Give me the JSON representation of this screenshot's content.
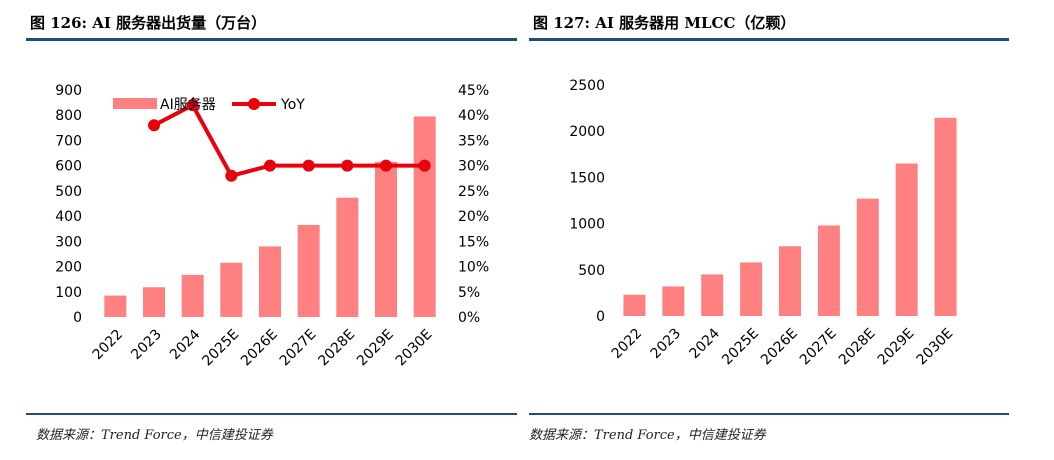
{
  "left": {
    "figure_title": "图 126: AI 服务器出货量（万台）",
    "source": "数据来源：Trend Force，中信建投证券"
  },
  "right": {
    "figure_title": "图 127: AI 服务器用 MLCC（亿颗）",
    "source": "数据来源：Trend Force，中信建投证券"
  },
  "colors": {
    "bar": "#ff8080",
    "line": "#e8000b",
    "rule": "#1f4e79"
  },
  "chart_data": [
    {
      "type": "bar",
      "title": "AI 服务器出货量（万台）",
      "categories": [
        "2022",
        "2023",
        "2024",
        "2025E",
        "2026E",
        "2027E",
        "2028E",
        "2029E",
        "2030E"
      ],
      "series": [
        {
          "name": "AI服务器",
          "type": "bar",
          "axis": "left",
          "values": [
            85,
            118,
            167,
            215,
            280,
            365,
            473,
            615,
            795
          ]
        },
        {
          "name": "YoY",
          "type": "line",
          "axis": "right",
          "values": [
            null,
            0.38,
            0.42,
            0.28,
            0.3,
            0.3,
            0.3,
            0.3,
            0.3
          ]
        }
      ],
      "ylim": [
        0,
        900
      ],
      "y_ticks": [
        "0",
        "100",
        "200",
        "300",
        "400",
        "500",
        "600",
        "700",
        "800",
        "900"
      ],
      "y2lim": [
        0,
        0.45
      ],
      "y2_ticks": [
        "0%",
        "5%",
        "10%",
        "15%",
        "20%",
        "25%",
        "30%",
        "35%",
        "40%",
        "45%"
      ],
      "legend": [
        "AI服务器",
        "YoY"
      ],
      "legend_position": "top"
    },
    {
      "type": "bar",
      "title": "AI 服务器用 MLCC（亿颗）",
      "categories": [
        "2022",
        "2023",
        "2024",
        "2025E",
        "2026E",
        "2027E",
        "2028E",
        "2029E",
        "2030E"
      ],
      "series": [
        {
          "name": "MLCC",
          "type": "bar",
          "values": [
            230,
            320,
            450,
            580,
            755,
            980,
            1270,
            1650,
            2145
          ]
        }
      ],
      "ylim": [
        0,
        2500
      ],
      "y_ticks": [
        "0",
        "500",
        "1000",
        "1500",
        "2000",
        "2500"
      ]
    }
  ]
}
